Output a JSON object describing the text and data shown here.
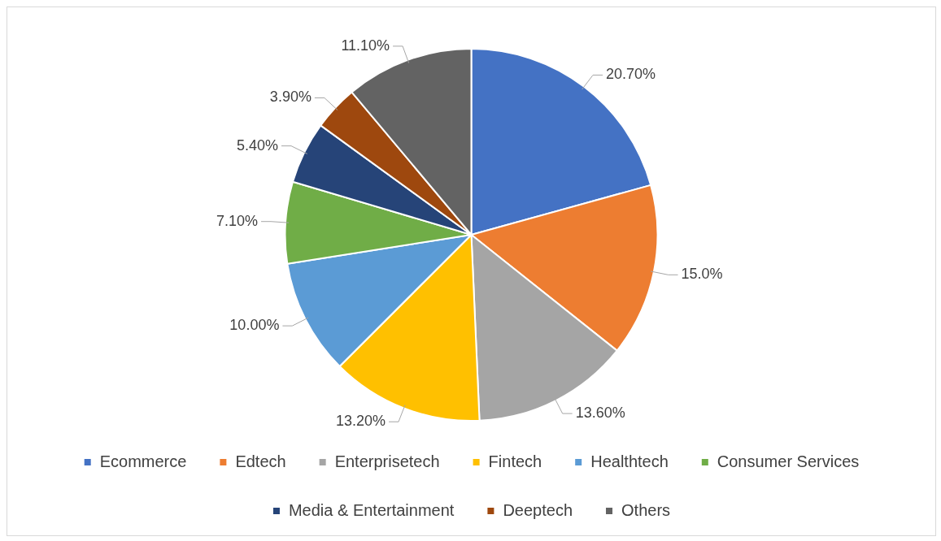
{
  "chart_data": {
    "type": "pie",
    "categories": [
      "Ecommerce",
      "Edtech",
      "Enterprisetech",
      "Fintech",
      "Healthtech",
      "Consumer Services",
      "Media & Entertainment",
      "Deeptech",
      "Others"
    ],
    "values": [
      20.7,
      15.0,
      13.6,
      13.2,
      10.0,
      7.1,
      5.4,
      3.9,
      11.1
    ],
    "colors": [
      "#4472c4",
      "#ed7d31",
      "#a5a5a5",
      "#ffc000",
      "#5b9bd5",
      "#70ad47",
      "#264478",
      "#9e480e",
      "#636363"
    ],
    "value_labels": [
      "20.70%",
      "15.0%",
      "13.60%",
      "13.20%",
      "10.00%",
      "7.10%",
      "5.40%",
      "3.90%",
      "11.10%"
    ],
    "legend": "bottom"
  }
}
